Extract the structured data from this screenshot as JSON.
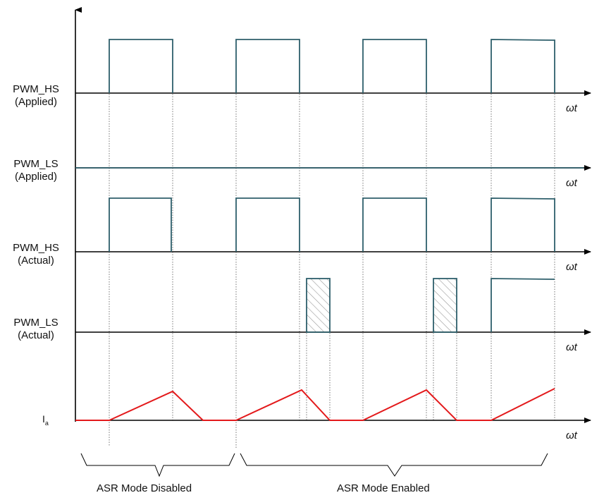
{
  "rows": [
    {
      "label": "PWM_HS",
      "sublabel": "(Applied)",
      "axis": "ωt"
    },
    {
      "label": "PWM_LS",
      "sublabel": "(Applied)",
      "axis": "ωt"
    },
    {
      "label": "PWM_HS",
      "sublabel": "(Actual)",
      "axis": "ωt"
    },
    {
      "label": "PWM_LS",
      "sublabel": "(Actual)",
      "axis": "ωt"
    }
  ],
  "current": {
    "label": "I",
    "subscript": "a",
    "axis": "ωt"
  },
  "regions": [
    {
      "label": "ASR Mode Disabled"
    },
    {
      "label": "ASR Mode Enabled"
    }
  ],
  "colors": {
    "pulse": "#2e5f6b",
    "current": "#e3191b",
    "axis": "#000000",
    "hatch": "#8a8a8a"
  }
}
